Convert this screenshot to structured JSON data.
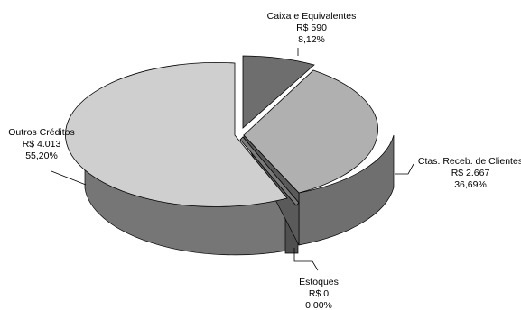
{
  "chart_data": {
    "type": "pie",
    "style": "3d-exploded",
    "legend": "none",
    "slices": [
      {
        "label": "Caixa e Equivalentes",
        "value_label": "R$ 590",
        "percent_label": "8,12%",
        "value": 590,
        "percent": 8.12,
        "color": "#6e6e6e",
        "side_color": "#4a4a4a"
      },
      {
        "label": "Ctas. Receb. de Clientes",
        "value_label": "R$ 2.667",
        "percent_label": "36,69%",
        "value": 2667,
        "percent": 36.69,
        "color": "#b0b0b0",
        "side_color": "#6f6f6f"
      },
      {
        "label": "Estoques",
        "value_label": "R$ 0",
        "percent_label": "0,00%",
        "value": 0,
        "percent": 0.0,
        "color": "#7a7a7a",
        "side_color": "#505050"
      },
      {
        "label": "Outros Créditos",
        "value_label": "R$ 4.013",
        "percent_label": "55,20%",
        "value": 4013,
        "percent": 55.2,
        "color": "#cfcfcf",
        "side_color": "#767676"
      }
    ]
  }
}
